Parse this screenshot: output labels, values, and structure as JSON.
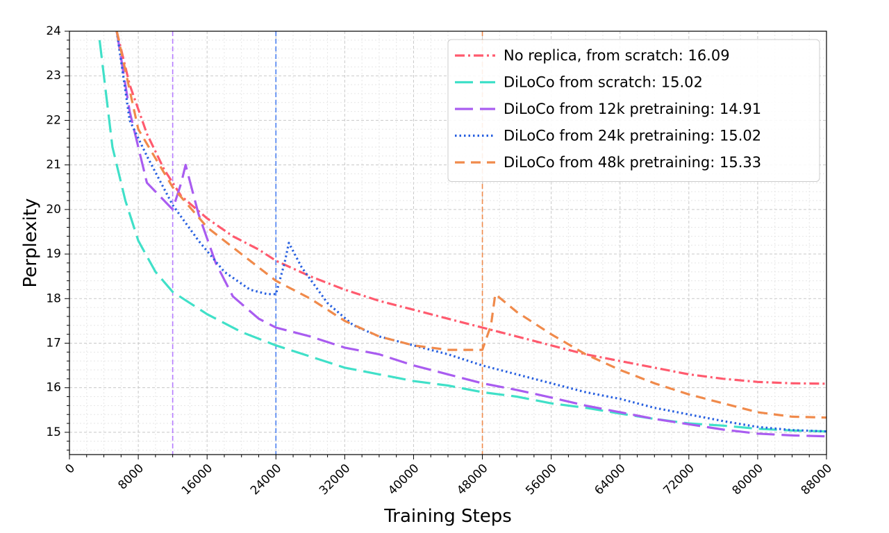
{
  "chart_data": {
    "type": "line",
    "xlabel": "Training Steps",
    "ylabel": "Perplexity",
    "xlim": [
      0,
      88000
    ],
    "ylim": [
      14.5,
      24
    ],
    "x_ticks": [
      0,
      8000,
      16000,
      24000,
      32000,
      40000,
      48000,
      56000,
      64000,
      72000,
      80000,
      88000
    ],
    "y_ticks": [
      15,
      16,
      17,
      18,
      19,
      20,
      21,
      22,
      23,
      24
    ],
    "grid": true,
    "legend_position": "top-right",
    "vlines": [
      {
        "x": 12000,
        "color": "#b57bff"
      },
      {
        "x": 24000,
        "color": "#4a7ff0"
      },
      {
        "x": 48000,
        "color": "#f08a4b"
      }
    ],
    "series": [
      {
        "name": "No replica, from scratch: 16.09",
        "color": "#ff5a6e",
        "dash": "dashdot",
        "points": [
          [
            5500,
            24
          ],
          [
            7000,
            22.8
          ],
          [
            9000,
            21.7
          ],
          [
            11000,
            20.9
          ],
          [
            13000,
            20.3
          ],
          [
            16000,
            19.8
          ],
          [
            19000,
            19.4
          ],
          [
            22000,
            19.1
          ],
          [
            24000,
            18.85
          ],
          [
            28000,
            18.5
          ],
          [
            32000,
            18.2
          ],
          [
            36000,
            17.95
          ],
          [
            40000,
            17.75
          ],
          [
            44000,
            17.55
          ],
          [
            48000,
            17.35
          ],
          [
            52000,
            17.15
          ],
          [
            56000,
            16.95
          ],
          [
            60000,
            16.75
          ],
          [
            64000,
            16.6
          ],
          [
            68000,
            16.45
          ],
          [
            72000,
            16.3
          ],
          [
            76000,
            16.2
          ],
          [
            80000,
            16.13
          ],
          [
            84000,
            16.1
          ],
          [
            88000,
            16.09
          ]
        ]
      },
      {
        "name": "DiLoCo from scratch: 15.02",
        "color": "#40e0c8",
        "dash": "longdash",
        "points": [
          [
            3500,
            23.8
          ],
          [
            5000,
            21.4
          ],
          [
            6500,
            20.2
          ],
          [
            8000,
            19.3
          ],
          [
            10000,
            18.6
          ],
          [
            12000,
            18.15
          ],
          [
            16000,
            17.65
          ],
          [
            20000,
            17.25
          ],
          [
            24000,
            16.95
          ],
          [
            28000,
            16.7
          ],
          [
            32000,
            16.45
          ],
          [
            36000,
            16.3
          ],
          [
            40000,
            16.15
          ],
          [
            44000,
            16.05
          ],
          [
            48000,
            15.9
          ],
          [
            52000,
            15.8
          ],
          [
            56000,
            15.65
          ],
          [
            60000,
            15.55
          ],
          [
            64000,
            15.42
          ],
          [
            68000,
            15.3
          ],
          [
            72000,
            15.2
          ],
          [
            76000,
            15.15
          ],
          [
            80000,
            15.08
          ],
          [
            84000,
            15.04
          ],
          [
            88000,
            15.02
          ]
        ]
      },
      {
        "name": "DiLoCo from 12k pretraining: 14.91",
        "color": "#a95cf0",
        "dash": "longdash",
        "points": [
          [
            5500,
            24
          ],
          [
            7000,
            22.2
          ],
          [
            9000,
            20.6
          ],
          [
            11000,
            20.2
          ],
          [
            12000,
            20.0
          ],
          [
            13000,
            20.6
          ],
          [
            13500,
            21.0
          ],
          [
            15000,
            19.9
          ],
          [
            17000,
            18.8
          ],
          [
            19000,
            18.05
          ],
          [
            22000,
            17.55
          ],
          [
            24000,
            17.35
          ],
          [
            28000,
            17.15
          ],
          [
            32000,
            16.9
          ],
          [
            36000,
            16.75
          ],
          [
            40000,
            16.5
          ],
          [
            44000,
            16.3
          ],
          [
            48000,
            16.1
          ],
          [
            52000,
            15.95
          ],
          [
            56000,
            15.78
          ],
          [
            60000,
            15.6
          ],
          [
            64000,
            15.45
          ],
          [
            68000,
            15.3
          ],
          [
            72000,
            15.18
          ],
          [
            76000,
            15.06
          ],
          [
            80000,
            14.97
          ],
          [
            84000,
            14.93
          ],
          [
            88000,
            14.91
          ]
        ]
      },
      {
        "name": "DiLoCo from 24k pretraining: 15.02",
        "color": "#2860e0",
        "dash": "dotted",
        "points": [
          [
            5500,
            24
          ],
          [
            7000,
            22.0
          ],
          [
            9000,
            21.2
          ],
          [
            12000,
            20.1
          ],
          [
            15000,
            19.3
          ],
          [
            18000,
            18.6
          ],
          [
            21000,
            18.2
          ],
          [
            23000,
            18.1
          ],
          [
            24000,
            18.1
          ],
          [
            25000,
            18.8
          ],
          [
            25500,
            19.25
          ],
          [
            27000,
            18.7
          ],
          [
            30000,
            17.9
          ],
          [
            33000,
            17.4
          ],
          [
            36000,
            17.15
          ],
          [
            40000,
            16.95
          ],
          [
            44000,
            16.75
          ],
          [
            48000,
            16.5
          ],
          [
            52000,
            16.3
          ],
          [
            56000,
            16.1
          ],
          [
            60000,
            15.9
          ],
          [
            64000,
            15.75
          ],
          [
            68000,
            15.55
          ],
          [
            72000,
            15.4
          ],
          [
            76000,
            15.25
          ],
          [
            80000,
            15.12
          ],
          [
            84000,
            15.05
          ],
          [
            88000,
            15.02
          ]
        ]
      },
      {
        "name": "DiLoCo from 48k pretraining: 15.33",
        "color": "#f08a4b",
        "dash": "dashed",
        "points": [
          [
            5500,
            24
          ],
          [
            8000,
            21.8
          ],
          [
            12000,
            20.5
          ],
          [
            16000,
            19.6
          ],
          [
            20000,
            19.0
          ],
          [
            24000,
            18.4
          ],
          [
            28000,
            18.0
          ],
          [
            32000,
            17.5
          ],
          [
            36000,
            17.15
          ],
          [
            40000,
            16.95
          ],
          [
            44000,
            16.85
          ],
          [
            48000,
            16.85
          ],
          [
            49000,
            17.4
          ],
          [
            49500,
            18.1
          ],
          [
            52000,
            17.7
          ],
          [
            56000,
            17.2
          ],
          [
            60000,
            16.75
          ],
          [
            64000,
            16.4
          ],
          [
            68000,
            16.1
          ],
          [
            72000,
            15.85
          ],
          [
            76000,
            15.65
          ],
          [
            80000,
            15.45
          ],
          [
            84000,
            15.35
          ],
          [
            88000,
            15.33
          ]
        ]
      }
    ]
  }
}
